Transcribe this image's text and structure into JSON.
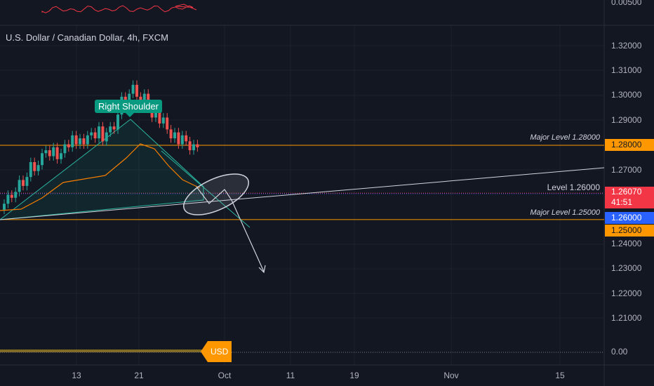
{
  "symbol_title": "U.S. Dollar / Canadian Dollar, 4h, FXCM",
  "callout": "Right Shoulder",
  "indicator": {
    "top_value": "0.00500",
    "bottom_value": "0.00",
    "flag": "USD"
  },
  "price_axis": [
    "1.32000",
    "1.31000",
    "1.30000",
    "1.29000",
    "1.27000",
    "1.24000",
    "1.23000",
    "1.22000",
    "1.21000"
  ],
  "time_axis": [
    "13",
    "21",
    "Oct",
    "11",
    "19",
    "Nov",
    "15"
  ],
  "levels": {
    "major_high": {
      "label": "Major Level 1.28000",
      "tag": "1.28000"
    },
    "mid": {
      "label": "Level 1.26000",
      "tag": "1.26000"
    },
    "major_low": {
      "label": "Major Level 1.25000",
      "tag": "1.25000"
    }
  },
  "current_price": {
    "value": "1.26070",
    "countdown": "41:51"
  },
  "colors": {
    "background": "#131722",
    "orange": "#ff9800",
    "blue": "#2962ff",
    "red": "#f23645",
    "teal": "#089981",
    "up_candle": "#26a69a",
    "down_candle": "#ef5350"
  },
  "chart_data": {
    "type": "candlestick",
    "title": "U.S. Dollar / Canadian Dollar, 4h, FXCM",
    "ylim": [
      1.205,
      1.325
    ],
    "horizontal_levels": [
      1.28,
      1.26,
      1.25
    ],
    "last_price": 1.2607,
    "annotations": [
      "Right Shoulder",
      "Major Level 1.28000",
      "Level 1.26000",
      "Major Level 1.25000"
    ]
  }
}
